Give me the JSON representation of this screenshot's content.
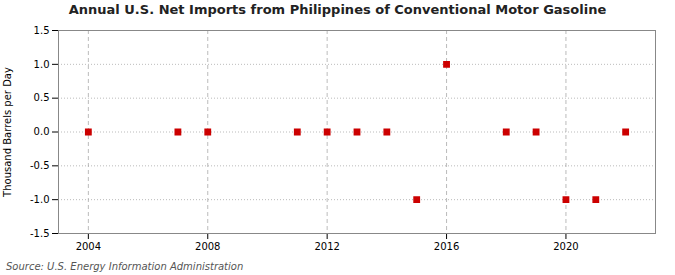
{
  "chart_data": {
    "type": "scatter",
    "title": "Annual U.S. Net Imports from Philippines of Conventional Motor Gasoline",
    "ylabel": "Thousand Barrels per Day",
    "source": "Source: U.S. Energy Information Administration",
    "x": [
      2004,
      2007,
      2008,
      2011,
      2012,
      2013,
      2014,
      2015,
      2016,
      2018,
      2019,
      2020,
      2021,
      2022
    ],
    "values": [
      0,
      0,
      0,
      0,
      0,
      0,
      0,
      -1,
      1,
      0,
      0,
      -1,
      -1,
      0
    ],
    "color": "#cc0000",
    "marker": "square",
    "xlim": [
      2003,
      2023
    ],
    "xticks": [
      2004,
      2008,
      2012,
      2016,
      2020
    ],
    "ylim": [
      -1.5,
      1.5
    ],
    "yticks": [
      -1.5,
      {
        "value": -1,
        "label": "-1.0"
      },
      -0.5,
      {
        "value": 0,
        "label": "0.0"
      },
      0.5,
      {
        "value": 1,
        "label": "1.0"
      },
      1.5
    ],
    "grid": true
  }
}
